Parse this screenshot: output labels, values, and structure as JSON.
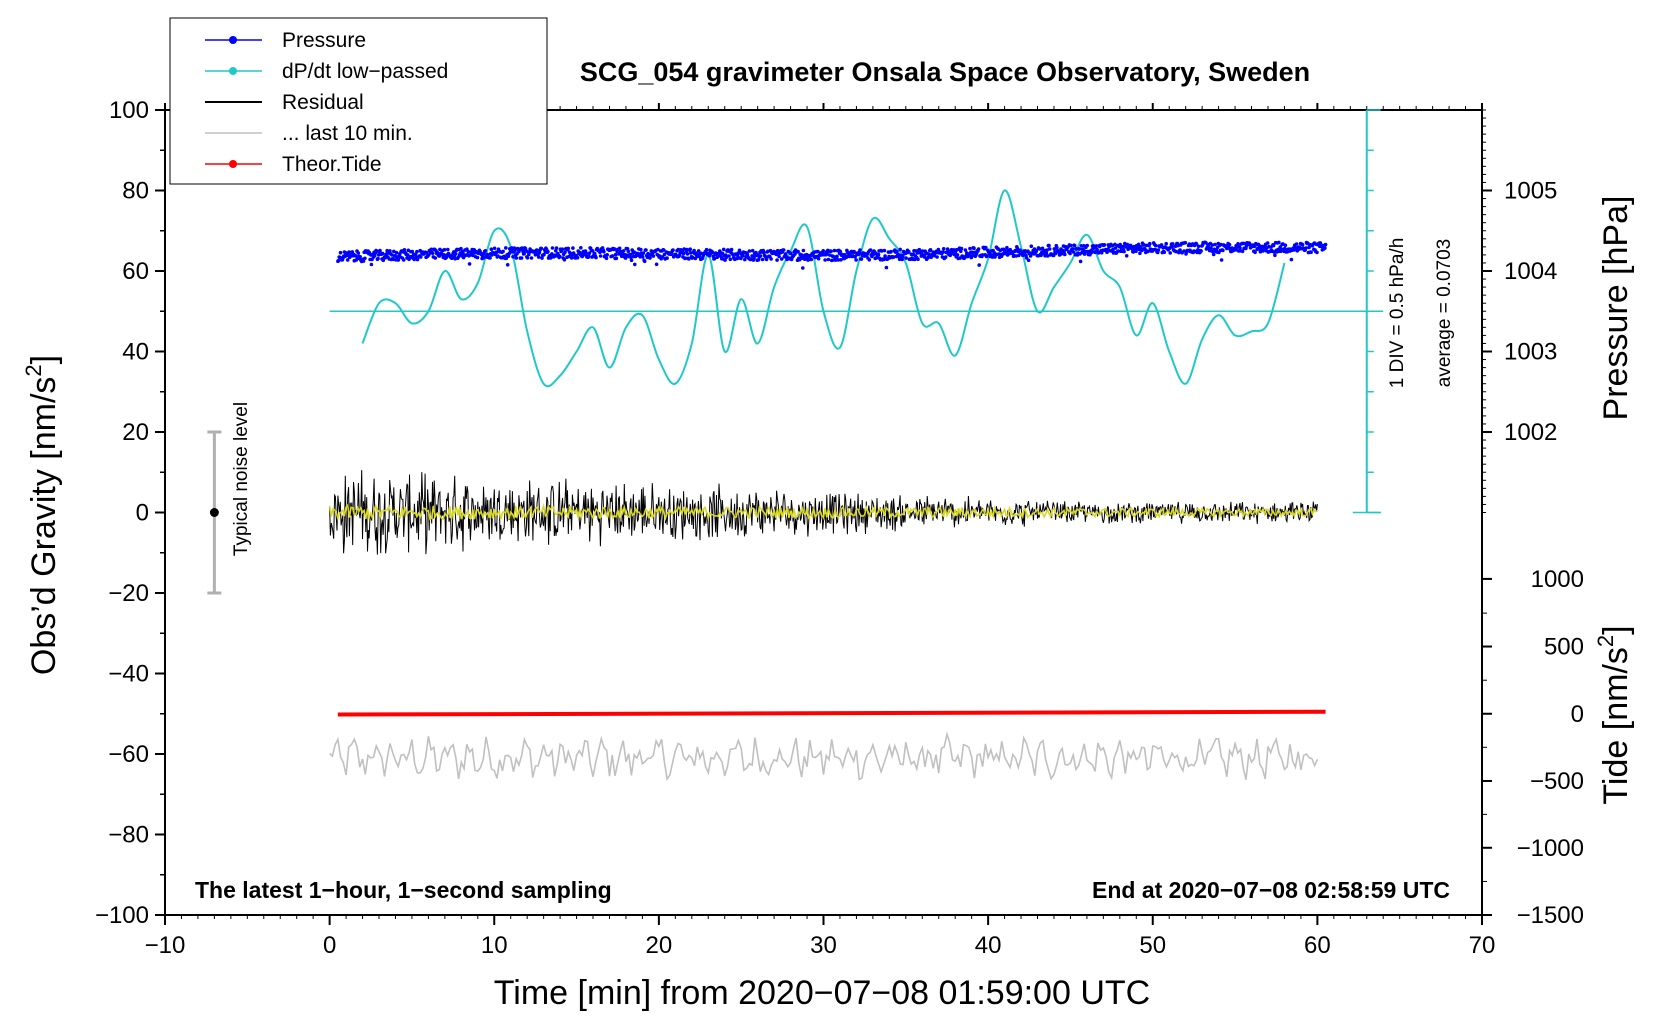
{
  "chart_data": {
    "type": "line",
    "title": "SCG_054 gravimeter Onsala Space Observatory, Sweden",
    "xlabel": "Time [min] from 2020−07−08 01:59:00 UTC",
    "ylabel_left": "Obs’d Gravity [nm/s",
    "ylabel_left_sup": "2",
    "ylabel_left_close": "]",
    "ylabel_right_pressure": "Pressure [hPa]",
    "ylabel_right_tide": "Tide [nm/s",
    "ylabel_right_tide_sup": "2",
    "ylabel_right_tide_close": "]",
    "xlim": [
      -10,
      70
    ],
    "ylim": [
      -100,
      100
    ],
    "x_ticks": [
      -10,
      0,
      10,
      20,
      30,
      40,
      50,
      60,
      70
    ],
    "x_tick_labels": [
      "−10",
      "0",
      "10",
      "20",
      "30",
      "40",
      "50",
      "60",
      "70"
    ],
    "y_ticks": [
      -100,
      -80,
      -60,
      -40,
      -20,
      0,
      20,
      40,
      60,
      80,
      100
    ],
    "y_tick_labels": [
      "−100",
      "−80",
      "−60",
      "−40",
      "−20",
      "0",
      "20",
      "40",
      "60",
      "80",
      "100"
    ],
    "pressure_ticks": [
      {
        "label": "1005",
        "value": 1005,
        "gravity_pos": 80
      },
      {
        "label": "1004",
        "value": 1004,
        "gravity_pos": 60
      },
      {
        "label": "1003",
        "value": 1003,
        "gravity_pos": 40
      },
      {
        "label": "1002",
        "value": 1002,
        "gravity_pos": 20
      }
    ],
    "tide_ticks": [
      {
        "label": "1000",
        "value": 1000,
        "gravity_pos": -16.5
      },
      {
        "label": "500",
        "value": 500,
        "gravity_pos": -33.3
      },
      {
        "label": "0",
        "value": 0,
        "gravity_pos": -50
      },
      {
        "label": "−500",
        "value": -500,
        "gravity_pos": -66.7
      },
      {
        "label": "−1000",
        "value": -1000,
        "gravity_pos": -83.3
      },
      {
        "label": "−1500",
        "value": -1500,
        "gravity_pos": -100
      }
    ],
    "legend": [
      {
        "label": "Pressure",
        "color": "#0000ff",
        "marker": true
      },
      {
        "label": "dP/dt low−passed",
        "color": "#20c8c8",
        "marker": true
      },
      {
        "label": "Residual",
        "color": "#000000",
        "marker": false
      },
      {
        "label": "... last 10 min.",
        "color": "#c0c0c0",
        "marker": false
      },
      {
        "label": "Theor.Tide",
        "color": "#ff0000",
        "marker": true
      }
    ],
    "series": [
      {
        "name": "Pressure",
        "color": "#0000ff",
        "x_range": [
          0.5,
          60.5
        ],
        "offset_level": 63.5,
        "trend_end": 65.5
      },
      {
        "name": "dP/dt low-passed",
        "color": "#20c8c8",
        "baseline": 50,
        "x": [
          2,
          3,
          4,
          5,
          6,
          7,
          8,
          9,
          10,
          11,
          12,
          13,
          14,
          15,
          16,
          17,
          18,
          19,
          20,
          21,
          22,
          23,
          24,
          25,
          26,
          27,
          28,
          29,
          30,
          31,
          32,
          33,
          34,
          35,
          36,
          37,
          38,
          39,
          40,
          41,
          42,
          43,
          44,
          45,
          46,
          47,
          48,
          49,
          50,
          51,
          52,
          53,
          54,
          55,
          56,
          57,
          58
        ],
        "y": [
          42,
          52,
          52,
          47,
          50,
          60,
          53,
          57,
          70,
          66,
          45,
          32,
          34,
          40,
          46,
          36,
          46,
          49,
          38,
          32,
          42,
          64,
          40,
          53,
          42,
          56,
          65,
          71,
          50,
          41,
          60,
          73,
          68,
          62,
          47,
          47,
          39,
          52,
          63,
          80,
          66,
          50,
          56,
          62,
          69,
          60,
          56,
          44,
          52,
          40,
          32,
          43,
          49,
          44,
          45,
          47,
          62
        ]
      },
      {
        "name": "Residual",
        "color": "#000000",
        "x_range": [
          0,
          60
        ],
        "center": 0,
        "amplitude_start": 12,
        "amplitude_end": 3
      },
      {
        "name": "... last 10 min.",
        "color": "#c0c0c0",
        "x_range": [
          0,
          60
        ],
        "center": -61,
        "amplitude": 4
      },
      {
        "name": "Theor.Tide",
        "color": "#ff0000",
        "x_range": [
          0.5,
          60.5
        ],
        "y_start": -50.2,
        "y_end": -49.5
      }
    ],
    "annotations": {
      "noise_label": "Typical noise level",
      "noise_range": [
        -20,
        20
      ],
      "div_label": "1 DIV = 0.5 hPa/h",
      "avg_label": "average = 0.0703",
      "footer_left": "The latest 1−hour, 1−second sampling",
      "footer_right": "End at 2020−07−08 02:58:59 UTC"
    }
  }
}
